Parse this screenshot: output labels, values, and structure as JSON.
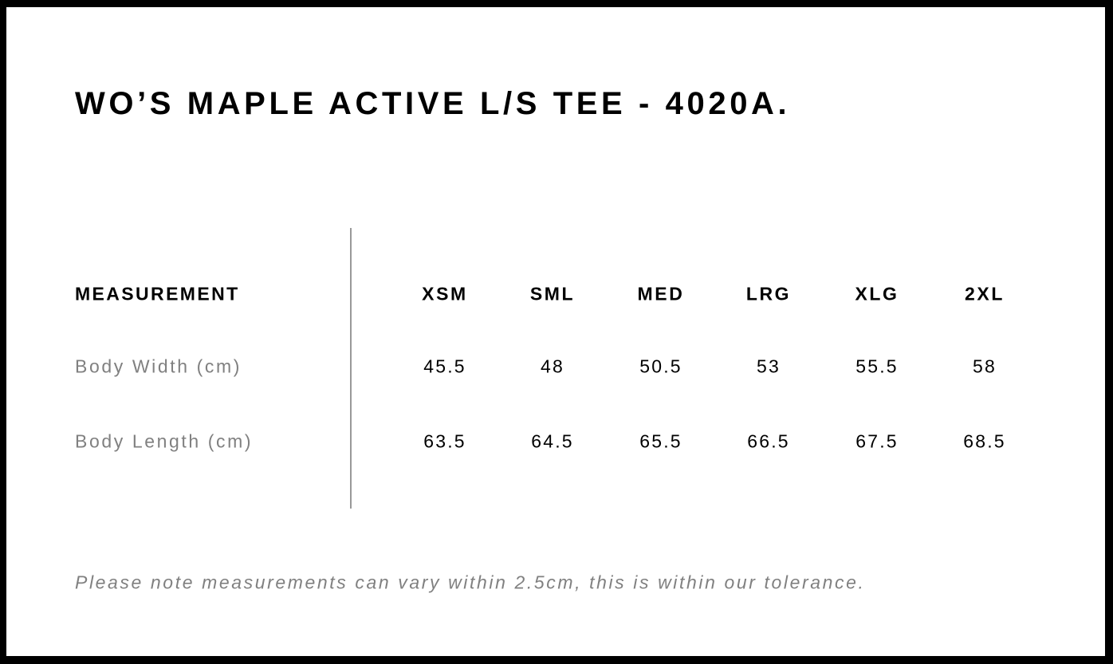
{
  "title": "WO’S MAPLE ACTIVE L/S TEE - 4020A.",
  "table": {
    "header_label": "MEASUREMENT",
    "sizes": [
      "XSM",
      "SML",
      "MED",
      "LRG",
      "XLG",
      "2XL"
    ],
    "rows": [
      {
        "label": "Body Width (cm)",
        "values": [
          "45.5",
          "48",
          "50.5",
          "53",
          "55.5",
          "58"
        ]
      },
      {
        "label": "Body Length (cm)",
        "values": [
          "63.5",
          "64.5",
          "65.5",
          "66.5",
          "67.5",
          "68.5"
        ]
      }
    ]
  },
  "note": "Please note measurements can vary within 2.5cm, this is within our tolerance."
}
